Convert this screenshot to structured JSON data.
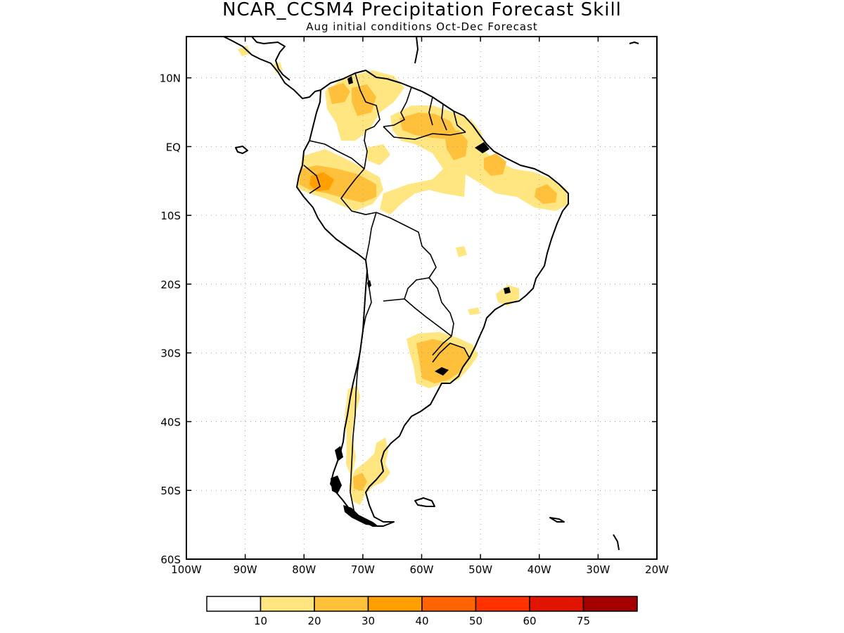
{
  "header": {
    "title": "NCAR_CCSM4 Precipitation Forecast Skill",
    "subtitle": "Aug initial conditions  Oct-Dec Forecast"
  },
  "map": {
    "lon_range": [
      -100,
      -20
    ],
    "lat_range": [
      -60,
      16
    ],
    "lon_ticks": [
      {
        "value": -100,
        "label": "100W"
      },
      {
        "value": -90,
        "label": "90W"
      },
      {
        "value": -80,
        "label": "80W"
      },
      {
        "value": -70,
        "label": "70W"
      },
      {
        "value": -60,
        "label": "60W"
      },
      {
        "value": -50,
        "label": "50W"
      },
      {
        "value": -40,
        "label": "40W"
      },
      {
        "value": -30,
        "label": "30W"
      },
      {
        "value": -20,
        "label": "20W"
      }
    ],
    "lat_ticks": [
      {
        "value": 10,
        "label": "10N"
      },
      {
        "value": 0,
        "label": "EQ"
      },
      {
        "value": -10,
        "label": "10S"
      },
      {
        "value": -20,
        "label": "20S"
      },
      {
        "value": -30,
        "label": "30S"
      },
      {
        "value": -40,
        "label": "40S"
      },
      {
        "value": -50,
        "label": "50S"
      },
      {
        "value": -60,
        "label": "60S"
      }
    ],
    "grid": "dotted",
    "colors": {
      "coast": "#000000",
      "grid": "#a0a0a0"
    }
  },
  "legend": {
    "colors": [
      "#ffffff",
      "#ffe680",
      "#ffc03c",
      "#ffa000",
      "#ff6400",
      "#ff3200",
      "#e11400",
      "#a50000"
    ],
    "labels": [
      "10",
      "20",
      "30",
      "40",
      "50",
      "60",
      "75"
    ]
  }
}
